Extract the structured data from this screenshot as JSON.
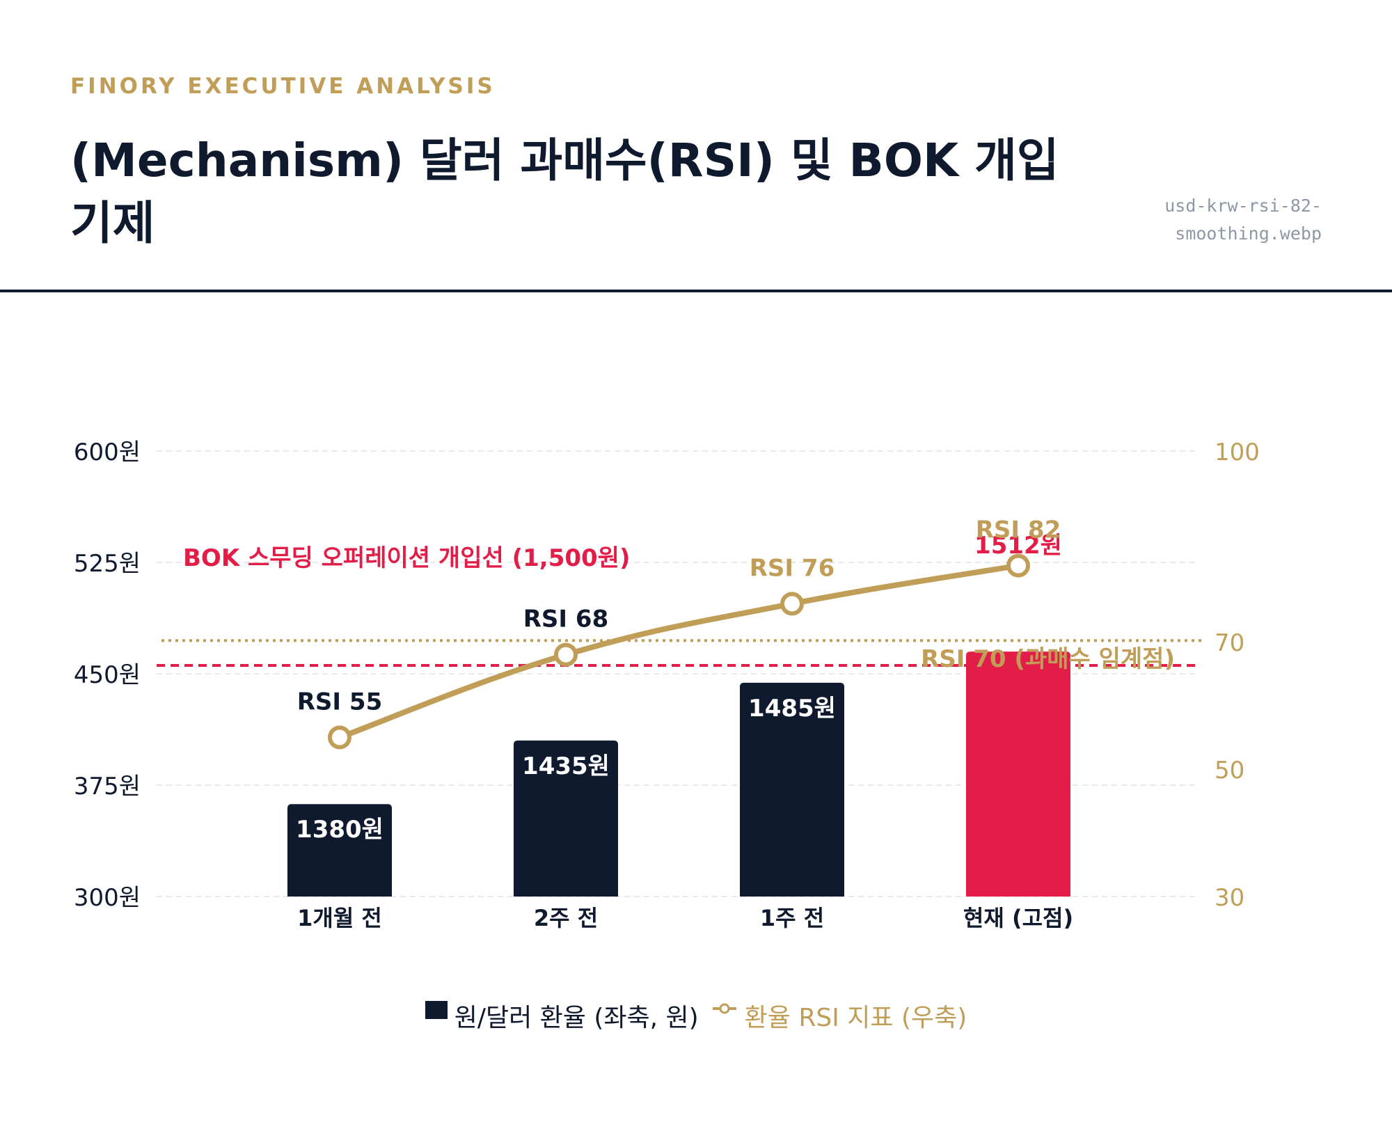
{
  "header": {
    "kicker": "FINORY EXECUTIVE ANALYSIS",
    "title": "(Mechanism) 달러 과매수(RSI) 및 BOK 개입 기제",
    "filename_line1": "usd-krw-rsi-82-",
    "filename_line2": "smoothing.webp"
  },
  "colors": {
    "navy": "#101a2e",
    "accent_red": "#e11d48",
    "gold": "#c19e58",
    "grid": "#e5e7eb"
  },
  "chart_data": {
    "type": "bar",
    "categories": [
      "1개월 전",
      "2주 전",
      "1주 전",
      "현재 (고점)"
    ],
    "series": [
      {
        "name": "원/달러 환율 (좌축, 원)",
        "kind": "bar",
        "axis": "left",
        "values": [
          1380,
          1435,
          1485,
          1512
        ],
        "labels": [
          "1380원",
          "1435원",
          "1485원",
          "1512원"
        ],
        "colors": [
          "#101a2e",
          "#101a2e",
          "#101a2e",
          "#e11d48"
        ]
      },
      {
        "name": "환율 RSI 지표 (우축)",
        "kind": "line",
        "axis": "right",
        "values": [
          55,
          68,
          76,
          82
        ],
        "labels": [
          "RSI 55",
          "RSI 68",
          "RSI 76",
          "RSI 82"
        ],
        "label_colors": [
          "#101a2e",
          "#101a2e",
          "#c19e58",
          "#c19e58"
        ],
        "color": "#c19e58"
      }
    ],
    "y_left": {
      "ticks": [
        300,
        375,
        450,
        525,
        600
      ],
      "tick_labels": [
        "300원",
        "375원",
        "450원",
        "525원",
        "600원"
      ]
    },
    "y_right": {
      "ticks": [
        30,
        50,
        70,
        100
      ],
      "tick_labels": [
        "30",
        "50",
        "70",
        "100"
      ]
    },
    "reference_lines": [
      {
        "label": "BOK 스무딩 오퍼레이션 개입선 (1,500원)",
        "axis": "left",
        "value": 1500,
        "color": "#e11d48",
        "style": "dashed"
      },
      {
        "label": "RSI 70 (과매수 임계점)",
        "axis": "right",
        "value": 70,
        "color": "#c19e58",
        "style": "dotted"
      }
    ],
    "grid": true,
    "legend_position": "bottom"
  }
}
